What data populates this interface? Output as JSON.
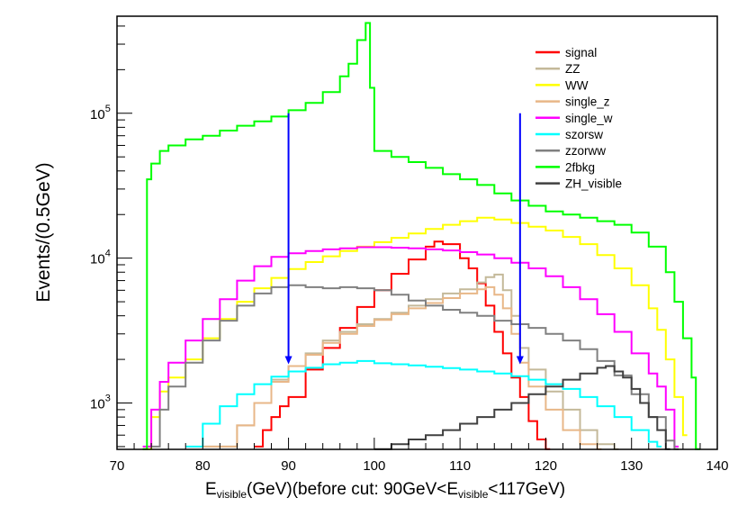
{
  "chart_data": {
    "type": "line",
    "style": "step-histogram",
    "xlabel": {
      "main": "E",
      "sub1": "visible",
      "mid": "(GeV)(before cut: 90GeV<E",
      "sub2": "visible",
      "end": "<117GeV)"
    },
    "ylabel": "Events/(0.5GeV)",
    "xlim": [
      70,
      140
    ],
    "ylim_log10": [
      2.68,
      5.67
    ],
    "x_ticks": [
      70,
      80,
      90,
      100,
      110,
      120,
      130,
      140
    ],
    "y_ticks": [
      {
        "value": 1000,
        "base": "10",
        "exp": "3"
      },
      {
        "value": 10000,
        "base": "10",
        "exp": "4"
      },
      {
        "value": 100000,
        "base": "10",
        "exp": "5"
      }
    ],
    "arrows": [
      {
        "x": 90,
        "y_top": 100000,
        "y_bottom": 1850,
        "color": "#0000ff"
      },
      {
        "x": 117,
        "y_top": 100000,
        "y_bottom": 1850,
        "color": "#0000ff"
      }
    ],
    "legend_position": "top-right",
    "series": [
      {
        "name": "signal",
        "color": "#ff0000",
        "points": [
          [
            86,
            500
          ],
          [
            87,
            650
          ],
          [
            88,
            800
          ],
          [
            89,
            950
          ],
          [
            90,
            1100
          ],
          [
            92,
            1700
          ],
          [
            94,
            2400
          ],
          [
            96,
            3300
          ],
          [
            98,
            4600
          ],
          [
            100,
            6000
          ],
          [
            102,
            7800
          ],
          [
            104,
            9800
          ],
          [
            106,
            12000
          ],
          [
            107,
            13000
          ],
          [
            108,
            12500
          ],
          [
            110,
            10000
          ],
          [
            111,
            8500
          ],
          [
            112,
            6700
          ],
          [
            113,
            4700
          ],
          [
            114,
            3100
          ],
          [
            115,
            2200
          ],
          [
            116,
            1500
          ],
          [
            117,
            1100
          ],
          [
            118,
            750
          ],
          [
            119,
            560
          ],
          [
            120,
            480
          ]
        ]
      },
      {
        "name": "ZZ",
        "color": "#c4b99a",
        "points": [
          [
            80,
            500
          ],
          [
            84,
            700
          ],
          [
            86,
            1000
          ],
          [
            88,
            1450
          ],
          [
            90,
            1800
          ],
          [
            92,
            2200
          ],
          [
            94,
            2700
          ],
          [
            96,
            3100
          ],
          [
            98,
            3500
          ],
          [
            100,
            3800
          ],
          [
            102,
            4200
          ],
          [
            104,
            4700
          ],
          [
            106,
            5200
          ],
          [
            108,
            5700
          ],
          [
            110,
            6100
          ],
          [
            112,
            6800
          ],
          [
            113,
            7400
          ],
          [
            114,
            7700
          ],
          [
            115,
            6000
          ],
          [
            116,
            4000
          ],
          [
            117,
            2400
          ],
          [
            118,
            1700
          ],
          [
            120,
            1200
          ],
          [
            122,
            900
          ],
          [
            124,
            650
          ],
          [
            126,
            520
          ],
          [
            128,
            480
          ]
        ]
      },
      {
        "name": "WW",
        "color": "#ffff00",
        "points": [
          [
            73,
            480
          ],
          [
            74,
            800
          ],
          [
            75,
            1200
          ],
          [
            76,
            1500
          ],
          [
            78,
            2000
          ],
          [
            80,
            2800
          ],
          [
            82,
            3800
          ],
          [
            84,
            5000
          ],
          [
            86,
            6200
          ],
          [
            88,
            7300
          ],
          [
            90,
            8400
          ],
          [
            92,
            9400
          ],
          [
            94,
            10300
          ],
          [
            96,
            11200
          ],
          [
            98,
            12000
          ],
          [
            100,
            12900
          ],
          [
            102,
            13800
          ],
          [
            104,
            14800
          ],
          [
            106,
            15900
          ],
          [
            108,
            17000
          ],
          [
            110,
            18000
          ],
          [
            112,
            19000
          ],
          [
            114,
            18500
          ],
          [
            116,
            17500
          ],
          [
            118,
            16500
          ],
          [
            120,
            15500
          ],
          [
            122,
            14000
          ],
          [
            124,
            12500
          ],
          [
            126,
            10500
          ],
          [
            128,
            8500
          ],
          [
            130,
            6500
          ],
          [
            132,
            4500
          ],
          [
            133,
            3200
          ],
          [
            134,
            2000
          ],
          [
            135,
            1100
          ],
          [
            136,
            600
          ]
        ]
      },
      {
        "name": "single_z",
        "color": "#e8b788",
        "points": [
          [
            80,
            500
          ],
          [
            84,
            700
          ],
          [
            86,
            1000
          ],
          [
            88,
            1400
          ],
          [
            90,
            1800
          ],
          [
            92,
            2150
          ],
          [
            94,
            2600
          ],
          [
            96,
            3000
          ],
          [
            98,
            3400
          ],
          [
            100,
            3750
          ],
          [
            102,
            4100
          ],
          [
            104,
            4500
          ],
          [
            106,
            4900
          ],
          [
            108,
            5300
          ],
          [
            110,
            5700
          ],
          [
            112,
            6100
          ],
          [
            113,
            6300
          ],
          [
            114,
            5600
          ],
          [
            115,
            4500
          ],
          [
            116,
            3000
          ],
          [
            117,
            1900
          ],
          [
            118,
            1300
          ],
          [
            120,
            900
          ],
          [
            122,
            650
          ],
          [
            124,
            520
          ],
          [
            126,
            480
          ]
        ]
      },
      {
        "name": "single_w",
        "color": "#ff00ff",
        "points": [
          [
            73,
            500
          ],
          [
            74,
            900
          ],
          [
            75,
            1400
          ],
          [
            76,
            1900
          ],
          [
            78,
            2700
          ],
          [
            80,
            3800
          ],
          [
            82,
            5200
          ],
          [
            84,
            7000
          ],
          [
            86,
            8800
          ],
          [
            88,
            10200
          ],
          [
            90,
            10800
          ],
          [
            92,
            11200
          ],
          [
            94,
            11500
          ],
          [
            96,
            11700
          ],
          [
            98,
            11900
          ],
          [
            100,
            11900
          ],
          [
            102,
            11800
          ],
          [
            104,
            11700
          ],
          [
            106,
            11500
          ],
          [
            108,
            11300
          ],
          [
            110,
            11000
          ],
          [
            112,
            10600
          ],
          [
            114,
            10000
          ],
          [
            116,
            9300
          ],
          [
            118,
            8500
          ],
          [
            120,
            7500
          ],
          [
            122,
            6300
          ],
          [
            124,
            5200
          ],
          [
            126,
            4100
          ],
          [
            128,
            3100
          ],
          [
            130,
            2200
          ],
          [
            132,
            1600
          ],
          [
            133,
            1300
          ],
          [
            134,
            900
          ],
          [
            135,
            500
          ]
        ]
      },
      {
        "name": "szorsw",
        "color": "#00ffff",
        "points": [
          [
            78,
            500
          ],
          [
            80,
            720
          ],
          [
            82,
            950
          ],
          [
            84,
            1150
          ],
          [
            86,
            1350
          ],
          [
            88,
            1520
          ],
          [
            90,
            1650
          ],
          [
            92,
            1750
          ],
          [
            94,
            1850
          ],
          [
            96,
            1900
          ],
          [
            98,
            1950
          ],
          [
            100,
            1880
          ],
          [
            102,
            1850
          ],
          [
            104,
            1820
          ],
          [
            106,
            1780
          ],
          [
            108,
            1740
          ],
          [
            110,
            1700
          ],
          [
            112,
            1650
          ],
          [
            114,
            1600
          ],
          [
            116,
            1530
          ],
          [
            118,
            1450
          ],
          [
            120,
            1350
          ],
          [
            122,
            1250
          ],
          [
            124,
            1100
          ],
          [
            126,
            950
          ],
          [
            128,
            800
          ],
          [
            130,
            650
          ],
          [
            132,
            540
          ],
          [
            133,
            500
          ]
        ]
      },
      {
        "name": "zzorww",
        "color": "#808080",
        "points": [
          [
            74,
            500
          ],
          [
            75,
            900
          ],
          [
            76,
            1300
          ],
          [
            78,
            1900
          ],
          [
            80,
            2700
          ],
          [
            82,
            3700
          ],
          [
            84,
            4700
          ],
          [
            86,
            5700
          ],
          [
            88,
            6300
          ],
          [
            90,
            6500
          ],
          [
            92,
            6300
          ],
          [
            94,
            6200
          ],
          [
            96,
            6300
          ],
          [
            98,
            6200
          ],
          [
            100,
            6000
          ],
          [
            102,
            5600
          ],
          [
            104,
            5100
          ],
          [
            106,
            4700
          ],
          [
            108,
            4400
          ],
          [
            110,
            4200
          ],
          [
            112,
            4000
          ],
          [
            114,
            3700
          ],
          [
            116,
            3500
          ],
          [
            118,
            3300
          ],
          [
            120,
            3000
          ],
          [
            122,
            2700
          ],
          [
            124,
            2350
          ],
          [
            126,
            1950
          ],
          [
            128,
            1550
          ],
          [
            130,
            1150
          ],
          [
            132,
            800
          ],
          [
            134,
            550
          ],
          [
            135,
            480
          ]
        ]
      },
      {
        "name": "2fbkg",
        "color": "#00ff00",
        "points": [
          [
            73,
            480
          ],
          [
            73.5,
            35000
          ],
          [
            74,
            45000
          ],
          [
            75,
            55000
          ],
          [
            76,
            60000
          ],
          [
            78,
            66000
          ],
          [
            80,
            70000
          ],
          [
            82,
            76000
          ],
          [
            84,
            82000
          ],
          [
            86,
            88000
          ],
          [
            88,
            95000
          ],
          [
            90,
            105000
          ],
          [
            92,
            118000
          ],
          [
            94,
            140000
          ],
          [
            96,
            180000
          ],
          [
            97,
            220000
          ],
          [
            98,
            320000
          ],
          [
            99,
            420000
          ],
          [
            99.5,
            150000
          ],
          [
            100,
            55000
          ],
          [
            102,
            50000
          ],
          [
            104,
            46000
          ],
          [
            106,
            42000
          ],
          [
            108,
            38000
          ],
          [
            110,
            35000
          ],
          [
            112,
            32000
          ],
          [
            114,
            28000
          ],
          [
            116,
            25000
          ],
          [
            118,
            23000
          ],
          [
            120,
            21000
          ],
          [
            122,
            20000
          ],
          [
            124,
            19000
          ],
          [
            126,
            18000
          ],
          [
            128,
            17000
          ],
          [
            130,
            15000
          ],
          [
            132,
            12000
          ],
          [
            134,
            8000
          ],
          [
            135,
            5000
          ],
          [
            136,
            2800
          ],
          [
            137,
            1500
          ],
          [
            137.5,
            480
          ]
        ]
      },
      {
        "name": "ZH_visible",
        "color": "#404040",
        "points": [
          [
            100,
            480
          ],
          [
            102,
            520
          ],
          [
            104,
            560
          ],
          [
            106,
            600
          ],
          [
            108,
            650
          ],
          [
            110,
            720
          ],
          [
            112,
            800
          ],
          [
            114,
            900
          ],
          [
            116,
            1000
          ],
          [
            118,
            1150
          ],
          [
            120,
            1300
          ],
          [
            122,
            1450
          ],
          [
            124,
            1600
          ],
          [
            126,
            1750
          ],
          [
            127,
            1800
          ],
          [
            128,
            1650
          ],
          [
            129,
            1500
          ],
          [
            130,
            1250
          ],
          [
            131,
            1000
          ],
          [
            132,
            800
          ],
          [
            133,
            650
          ],
          [
            134,
            480
          ]
        ]
      }
    ]
  }
}
